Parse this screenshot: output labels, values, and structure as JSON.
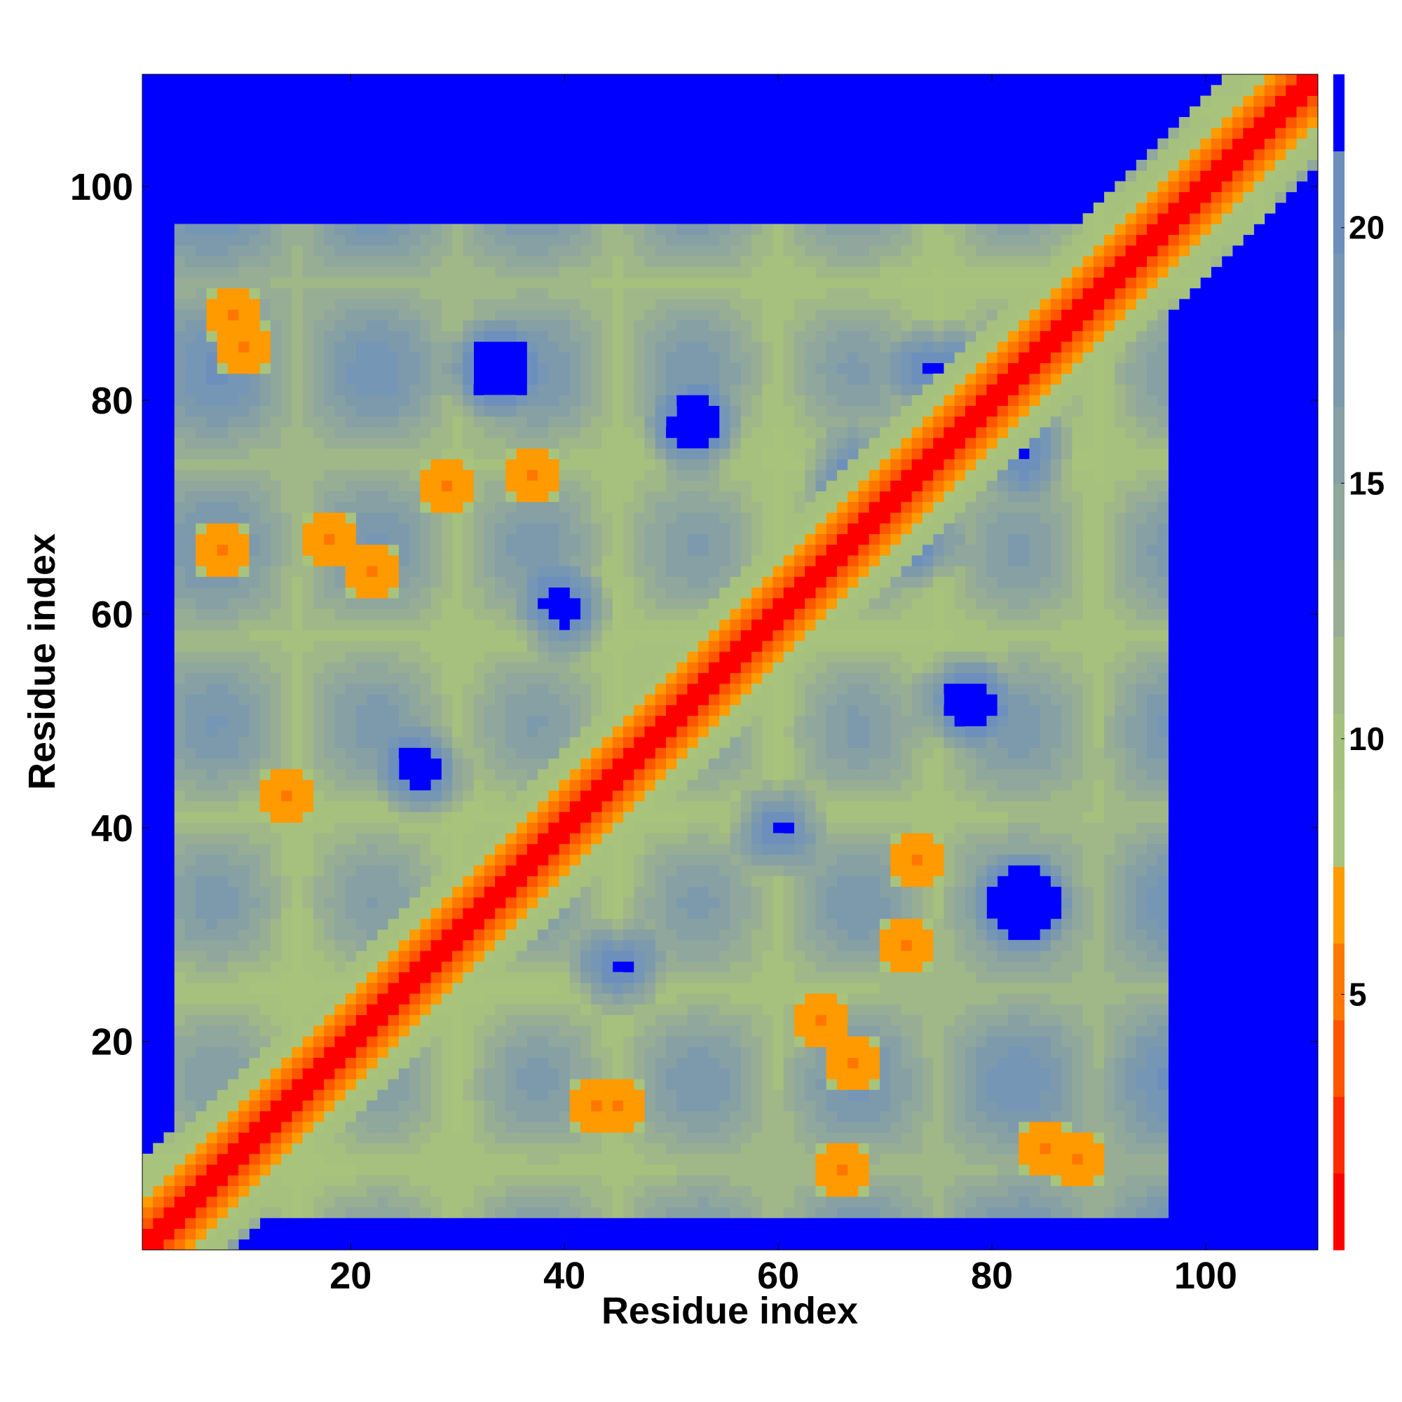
{
  "chart_data": {
    "type": "heatmap",
    "xlabel": "Residue index",
    "ylabel": "Residue index",
    "xlim": [
      1,
      110
    ],
    "ylim": [
      1,
      110
    ],
    "x_ticks": [
      20,
      40,
      60,
      80,
      100
    ],
    "y_ticks": [
      20,
      40,
      60,
      80,
      100
    ],
    "x_tick_labels": [
      "20",
      "40",
      "60",
      "80",
      "100"
    ],
    "y_tick_labels": [
      "20",
      "40",
      "60",
      "80",
      "100"
    ],
    "colorbar": {
      "range": [
        0,
        23
      ],
      "ticks": [
        5,
        10,
        15,
        20
      ],
      "tick_labels": [
        "5",
        "10",
        "15",
        "20"
      ],
      "bands": [
        {
          "from": 0,
          "to": 1.5,
          "color": "#ff0000"
        },
        {
          "from": 1.5,
          "to": 3,
          "color": "#ff2a00"
        },
        {
          "from": 3,
          "to": 4.5,
          "color": "#ff5500"
        },
        {
          "from": 4.5,
          "to": 6,
          "color": "#ff7700"
        },
        {
          "from": 6,
          "to": 7.5,
          "color": "#ff9a00"
        },
        {
          "from": 7.5,
          "to": 9,
          "color": "#a8c47c"
        },
        {
          "from": 9,
          "to": 10.5,
          "color": "#a6c07e"
        },
        {
          "from": 10.5,
          "to": 12,
          "color": "#a0b888"
        },
        {
          "from": 12,
          "to": 13.5,
          "color": "#98ae94"
        },
        {
          "from": 13.5,
          "to": 15,
          "color": "#8fa79c"
        },
        {
          "from": 15,
          "to": 16.5,
          "color": "#86a0a4"
        },
        {
          "from": 16.5,
          "to": 18,
          "color": "#7d9aac"
        },
        {
          "from": 18,
          "to": 19.5,
          "color": "#7596b4"
        },
        {
          "from": 19.5,
          "to": 21.5,
          "color": "#6c8fbc"
        },
        {
          "from": 21.5,
          "to": 23,
          "color": "#0000ff"
        }
      ]
    },
    "background_value_color": "#0000ff",
    "description_values": {
      "diagonal_distance": 0,
      "cutoff": 22
    }
  }
}
